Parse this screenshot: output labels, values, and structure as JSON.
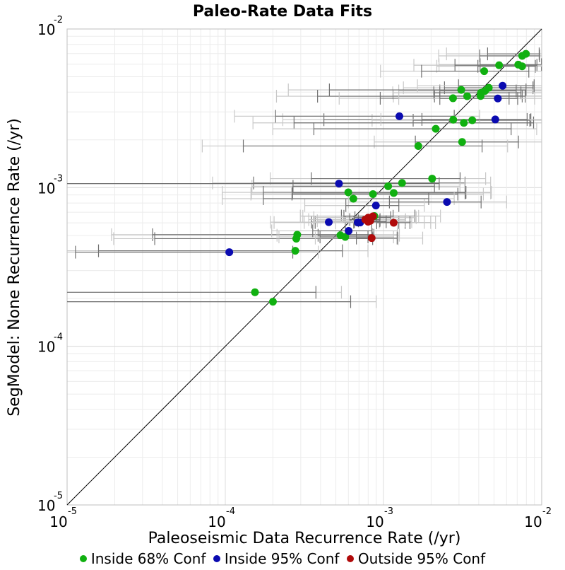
{
  "chart_data": {
    "type": "scatter",
    "title": "Paleo-Rate Data Fits",
    "xlabel": "Paleoseismic Data Recurrence Rate (/yr)",
    "ylabel": "SegModel: None Recurrence Rate (/yr)",
    "x_scale": "log",
    "y_scale": "log",
    "xlim": [
      1e-05,
      0.01
    ],
    "ylim": [
      1e-05,
      0.01
    ],
    "x_ticks": [
      {
        "base": "10",
        "exp": "-5"
      },
      {
        "base": "10",
        "exp": "-4"
      },
      {
        "base": "10",
        "exp": "-3"
      },
      {
        "base": "10",
        "exp": "-2"
      }
    ],
    "y_ticks": [
      {
        "base": "10",
        "exp": "-5"
      },
      {
        "base": "10",
        "exp": "-4"
      },
      {
        "base": "10",
        "exp": "-3"
      },
      {
        "base": "10",
        "exp": "-2"
      }
    ],
    "grid": true,
    "reference_line": "y = x",
    "legend_position": "bottom",
    "colors": {
      "inside68": "#10b010",
      "inside95": "#0a0ab0",
      "outside95": "#b00a0a",
      "errorbar_dark": "#707070",
      "errorbar_light": "#c8c8c8",
      "grid": "#ececec"
    },
    "series": [
      {
        "name": "Inside 68% Conf",
        "key": "inside68",
        "points": [
          {
            "x": 0.00795,
            "y": 0.00697,
            "lo": 0.00455,
            "hi": 0.00964
          },
          {
            "x": 0.00753,
            "y": 0.00677,
            "lo": 0.00406,
            "hi": 0.00969
          },
          {
            "x": 0.00711,
            "y": 0.00596,
            "lo": 0.00408,
            "hi": 0.00997
          },
          {
            "x": 0.00752,
            "y": 0.00582,
            "lo": 0.00395,
            "hi": 0.00912
          },
          {
            "x": 0.00538,
            "y": 0.00591,
            "lo": 0.00283,
            "hi": 0.00933
          },
          {
            "x": 0.00433,
            "y": 0.00542,
            "lo": 0.00174,
            "hi": 0.00829
          },
          {
            "x": 0.00463,
            "y": 0.00426,
            "lo": 0.00243,
            "hi": 0.00881
          },
          {
            "x": 0.00438,
            "y": 0.00407,
            "lo": 0.00227,
            "hi": 0.0069
          },
          {
            "x": 0.00413,
            "y": 0.00396,
            "lo": 0.00208,
            "hi": 0.00739
          },
          {
            "x": 0.00411,
            "y": 0.00378,
            "lo": 0.0021,
            "hi": 0.00753
          },
          {
            "x": 0.0031,
            "y": 0.00413,
            "lo": 0.000455,
            "hi": 0.00796
          },
          {
            "x": 0.00338,
            "y": 0.00377,
            "lo": 0.000383,
            "hi": 0.00787
          },
          {
            "x": 0.00275,
            "y": 0.00366,
            "lo": 0.000954,
            "hi": 0.00622
          },
          {
            "x": 0.00276,
            "y": 0.00268,
            "lo": 0.00042,
            "hi": 0.00854
          },
          {
            "x": 0.00364,
            "y": 0.00266,
            "lo": 0.00154,
            "hi": 0.00841
          },
          {
            "x": 0.00322,
            "y": 0.00256,
            "lo": 0.000272,
            "hi": 0.00888
          },
          {
            "x": 0.00214,
            "y": 0.00235,
            "lo": 0.000363,
            "hi": 0.00641
          },
          {
            "x": 0.00314,
            "y": 0.00194,
            "lo": 0.00159,
            "hi": 0.00713
          },
          {
            "x": 0.00166,
            "y": 0.00183,
            "lo": 0.00013,
            "hi": 0.0042
          },
          {
            "x": 0.00203,
            "y": 0.00114,
            "lo": 0.00035,
            "hi": 0.00305
          },
          {
            "x": 0.00131,
            "y": 0.00107,
            "lo": 0.000151,
            "hi": 0.00328
          },
          {
            "x": 0.00107,
            "y": 0.00102,
            "lo": 0.000268,
            "hi": 0.0021
          },
          {
            "x": 0.000599,
            "y": 0.000934,
            "lo": 0.000174,
            "hi": 0.00332
          },
          {
            "x": 0.000858,
            "y": 0.00091,
            "lo": 0.000264,
            "hi": 0.00295
          },
          {
            "x": 0.00116,
            "y": 0.000926,
            "lo": 0.000266,
            "hi": 0.00328
          },
          {
            "x": 0.000645,
            "y": 0.000852,
            "lo": 0.000174,
            "hi": 0.00193
          },
          {
            "x": 0.000876,
            "y": 0.000662,
            "lo": 0.000542,
            "hi": 0.00158
          },
          {
            "x": 0.000285,
            "y": 0.000505,
            "lo": 3.47e-05,
            "hi": 0.000848
          },
          {
            "x": 0.000281,
            "y": 0.000477,
            "lo": 3.58e-05,
            "hi": 0.000854
          },
          {
            "x": 0.000534,
            "y": 0.000501,
            "lo": 0.000386,
            "hi": 0.000869
          },
          {
            "x": 0.000573,
            "y": 0.000489,
            "lo": 0.000397,
            "hi": 0.000798
          },
          {
            "x": 0.000277,
            "y": 0.0004,
            "lo": 1.58e-05,
            "hi": 0.00055
          },
          {
            "x": 0.000154,
            "y": 0.000219,
            "lo": 1e-05,
            "hi": 0.000374
          },
          {
            "x": 0.0002,
            "y": 0.000191,
            "lo": 1e-05,
            "hi": 0.00062
          }
        ]
      },
      {
        "name": "Inside 95% Conf",
        "key": "inside95",
        "points": [
          {
            "x": 0.00566,
            "y": 0.00439,
            "lo": 0.00298,
            "hi": 0.00896
          },
          {
            "x": 0.00528,
            "y": 0.00365,
            "lo": 0.00227,
            "hi": 0.00705
          },
          {
            "x": 0.00126,
            "y": 0.00282,
            "lo": 0.000208,
            "hi": 0.0028
          },
          {
            "x": 0.00509,
            "y": 0.00269,
            "lo": 0.00175,
            "hi": 0.00809
          },
          {
            "x": 0.000523,
            "y": 0.00106,
            "lo": 1e-05,
            "hi": 0.00225
          },
          {
            "x": 0.00252,
            "y": 0.000812,
            "lo": 0.00109,
            "hi": 0.00414
          },
          {
            "x": 0.000895,
            "y": 0.000771,
            "lo": 0.000578,
            "hi": 0.00125
          },
          {
            "x": 0.000451,
            "y": 0.000606,
            "lo": 0.000351,
            "hi": 0.000648
          },
          {
            "x": 0.000687,
            "y": 0.000603,
            "lo": 0.00037,
            "hi": 0.00137
          },
          {
            "x": 0.000712,
            "y": 0.000603,
            "lo": 0.000574,
            "hi": 0.00125
          },
          {
            "x": 0.000602,
            "y": 0.000534,
            "lo": 0.000357,
            "hi": 0.000843
          },
          {
            "x": 0.000106,
            "y": 0.000392,
            "lo": 1.13e-05,
            "hi": 0.000267
          }
        ]
      },
      {
        "name": "Outside 95% Conf",
        "key": "outside95",
        "points": [
          {
            "x": 0.000858,
            "y": 0.00066,
            "lo": 0.000562,
            "hi": 0.00115
          },
          {
            "x": 0.000801,
            "y": 0.000647,
            "lo": 0.00066,
            "hi": 0.00111
          },
          {
            "x": 0.000767,
            "y": 0.000629,
            "lo": 0.000612,
            "hi": 0.000951
          },
          {
            "x": 0.000825,
            "y": 0.000618,
            "lo": 0.000694,
            "hi": 0.000948
          },
          {
            "x": 0.000799,
            "y": 0.00061,
            "lo": 0.000655,
            "hi": 0.00104
          },
          {
            "x": 0.00116,
            "y": 0.000601,
            "lo": 0.000906,
            "hi": 0.00147
          },
          {
            "x": 0.000842,
            "y": 0.000481,
            "lo": 0.000674,
            "hi": 0.00122
          }
        ]
      }
    ]
  }
}
